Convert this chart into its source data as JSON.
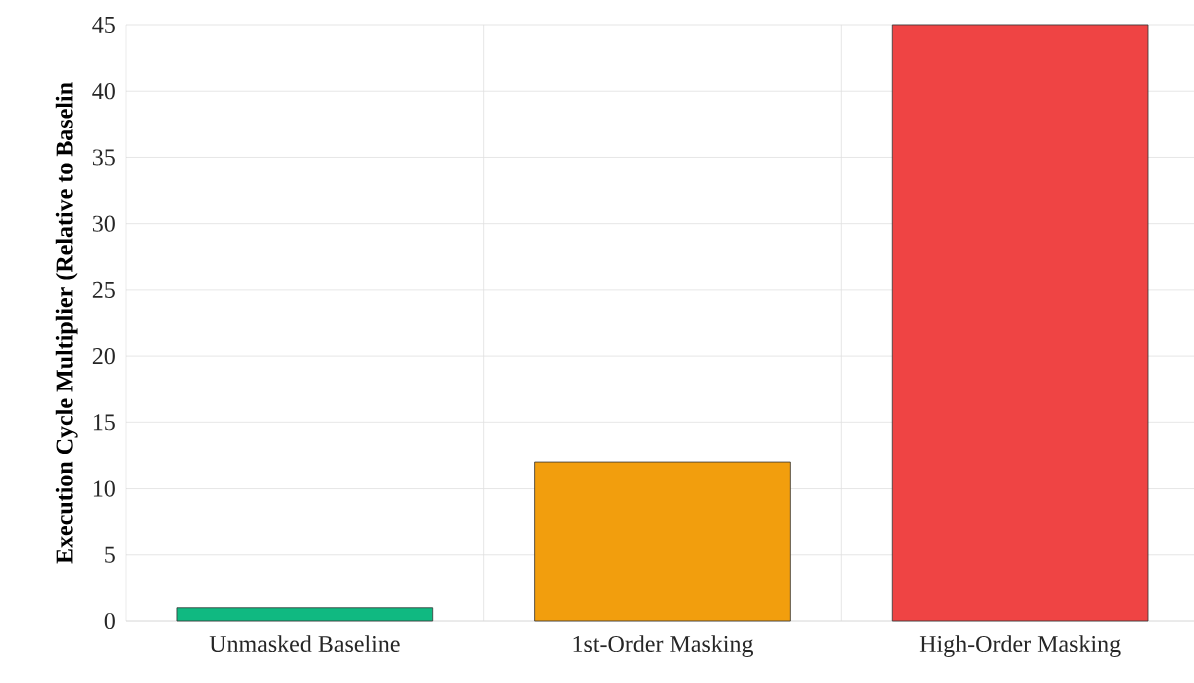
{
  "chart_data": {
    "type": "bar",
    "ylabel": "Execution Cycle Multiplier (Relative to Baselin",
    "categories": [
      "Unmasked Baseline",
      "1st-Order Masking",
      "High-Order Masking"
    ],
    "values": [
      1,
      12,
      45
    ],
    "colors": [
      "#10b981",
      "#f29e0d",
      "#ef4444"
    ],
    "ylim": [
      0,
      45
    ],
    "yticks": [
      0,
      5,
      10,
      15,
      20,
      25,
      30,
      35,
      40,
      45
    ],
    "grid": true
  }
}
